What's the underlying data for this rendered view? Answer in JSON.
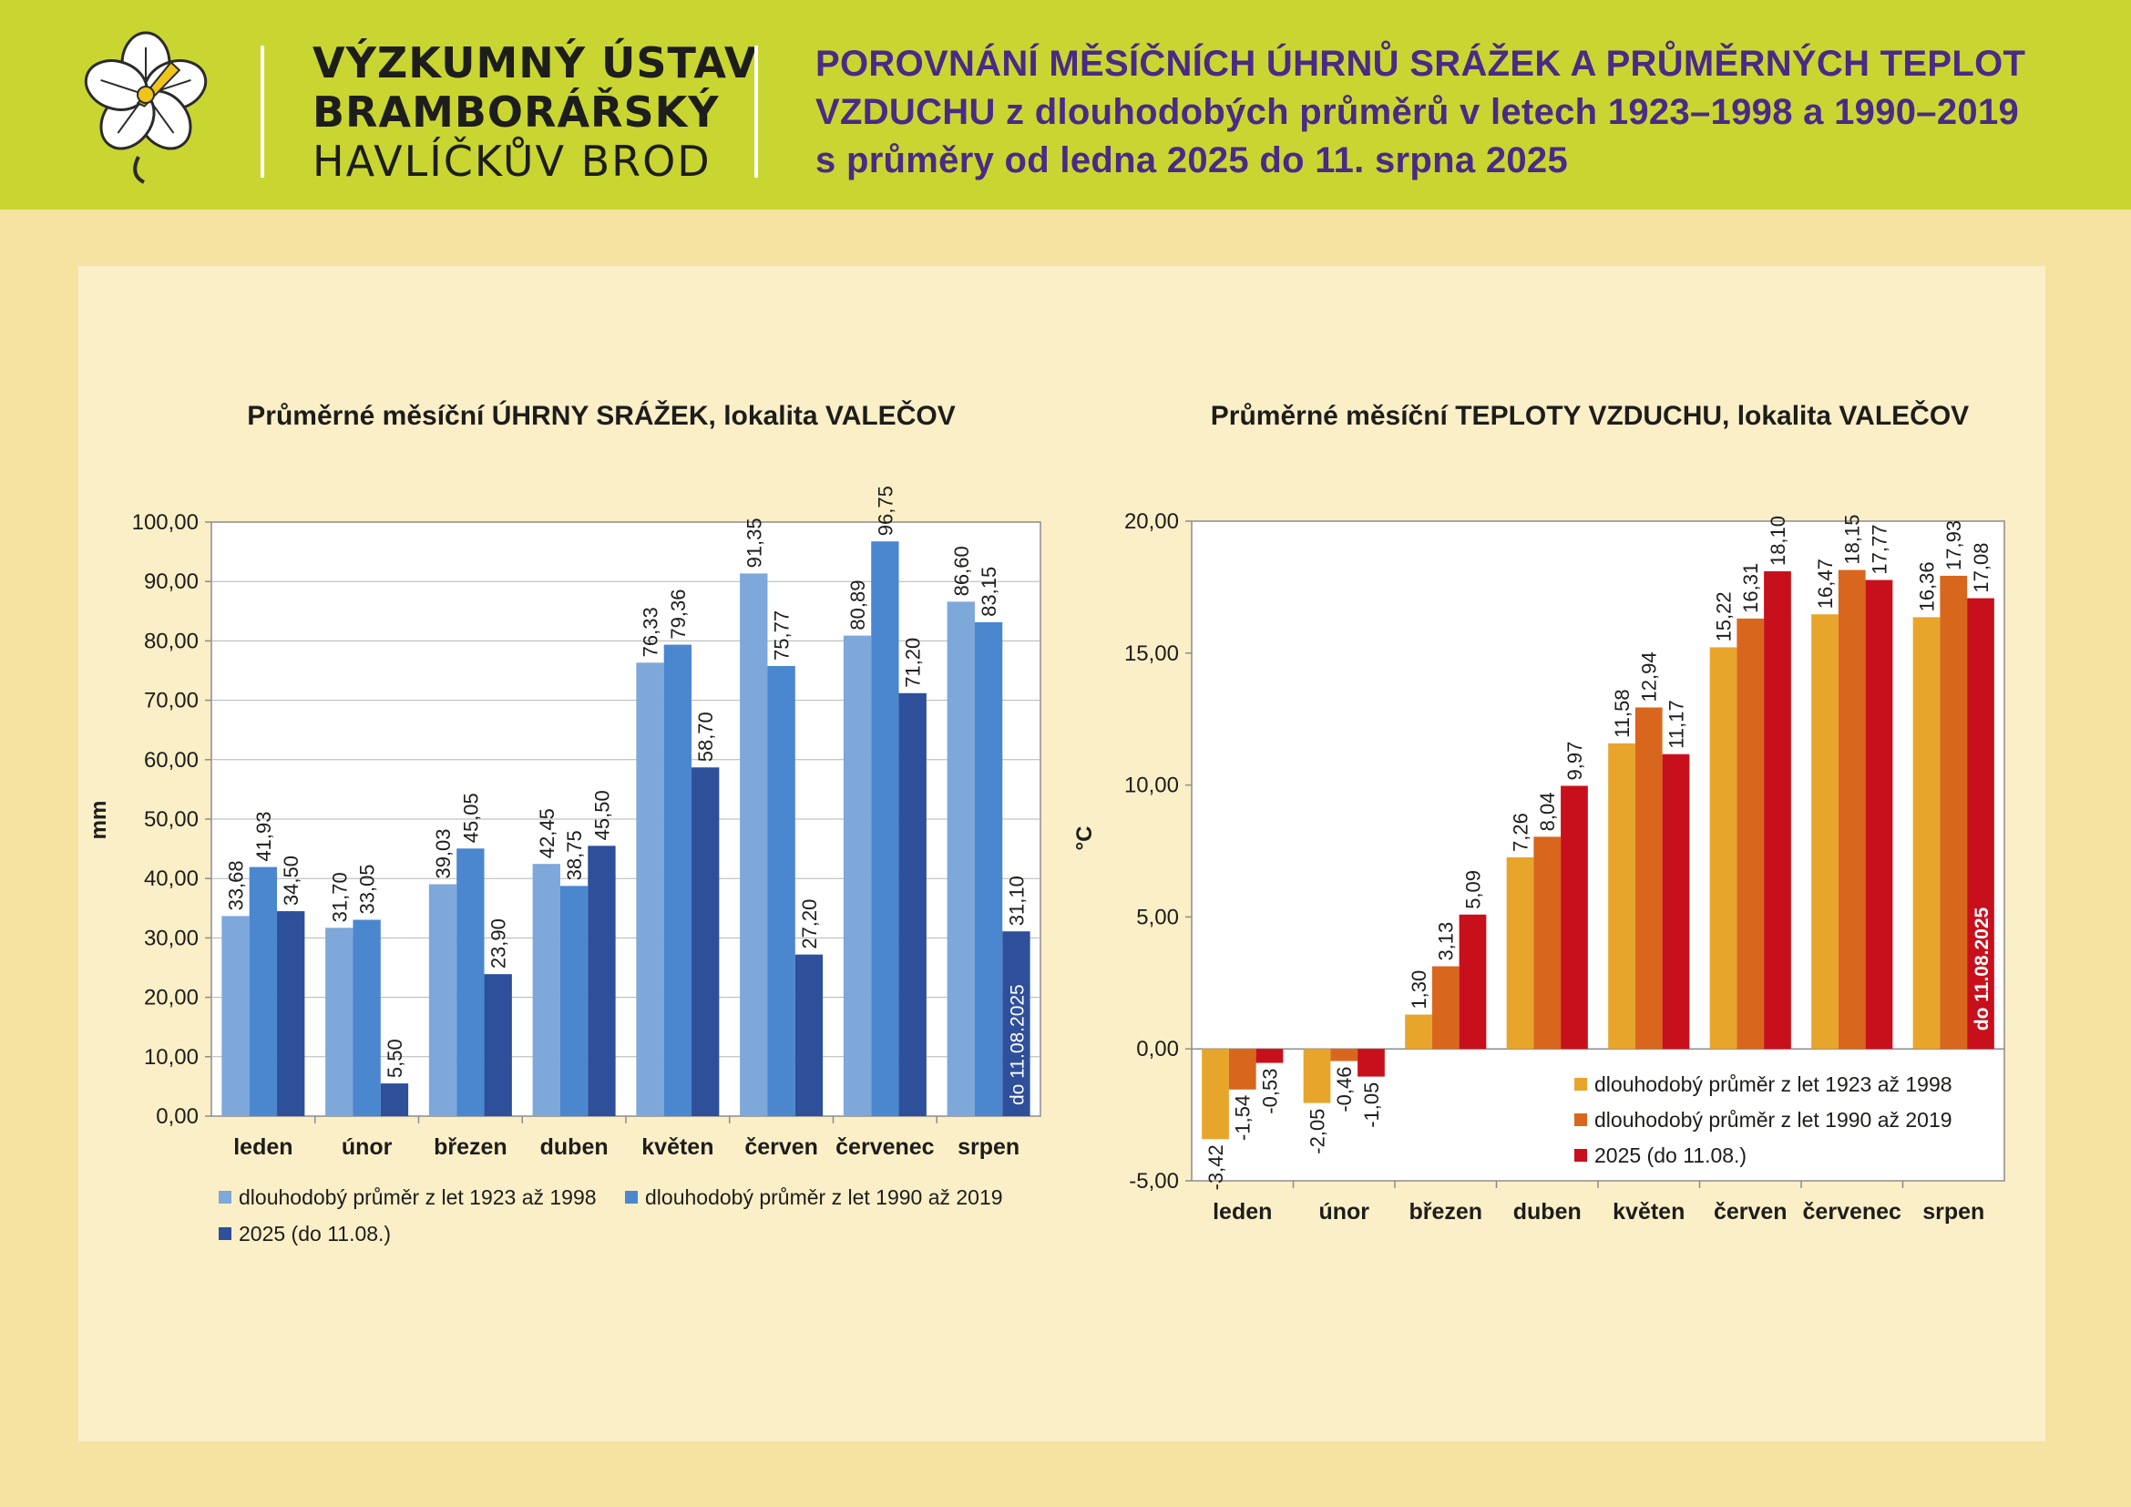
{
  "colors": {
    "header_bg": "#c9d631",
    "page_bg": "#f6e3a1",
    "panel_bg": "#fbefc8",
    "title": "#4a2a87"
  },
  "header": {
    "org_line1": "VÝZKUMNÝ ÚSTAV",
    "org_line2": "BRAMBORÁŘSKÝ",
    "org_line3": "HAVLÍČKŮV BROD",
    "title_line1": "POROVNÁNÍ MĚSÍČNÍCH ÚHRNŮ SRÁŽEK A PRŮMĚRNÝCH TEPLOT",
    "title_line2": "VZDUCHU z dlouhodobých průměrů v letech 1923–1998 a 1990–2019",
    "title_line3": "s průměry od ledna 2025 do 11. srpna 2025",
    "logo_icon": "flower-icon"
  },
  "chart_data": [
    {
      "type": "bar",
      "title": "Průměrné měsíční ÚHRNY SRÁŽEK, lokalita VALEČOV",
      "xlabel": "",
      "ylabel": "mm",
      "ylim": [
        0,
        100
      ],
      "yticks": [
        "0,00",
        "10,00",
        "20,00",
        "30,00",
        "40,00",
        "50,00",
        "60,00",
        "70,00",
        "80,00",
        "90,00",
        "100,00"
      ],
      "grid": true,
      "legend_position": "bottom",
      "categories": [
        "leden",
        "únor",
        "březen",
        "duben",
        "květen",
        "červen",
        "červenec",
        "srpen"
      ],
      "series": [
        {
          "name": "dlouhodobý průměr z let 1923 až 1998",
          "color": "#7ea7da",
          "values": [
            33.68,
            31.7,
            39.03,
            42.45,
            76.33,
            91.35,
            80.89,
            86.6
          ],
          "labels": [
            "33,68",
            "31,70",
            "39,03",
            "42,45",
            "76,33",
            "91,35",
            "80,89",
            "86,60"
          ]
        },
        {
          "name": "dlouhodobý průměr z let 1990 až 2019",
          "color": "#4b87cf",
          "values": [
            41.93,
            33.05,
            45.05,
            38.75,
            79.36,
            75.77,
            96.75,
            83.15
          ],
          "labels": [
            "41,93",
            "33,05",
            "45,05",
            "38,75",
            "79,36",
            "75,77",
            "96,75",
            "83,15"
          ]
        },
        {
          "name": "2025 (do 11.08.)",
          "color": "#2e4f9a",
          "values": [
            34.5,
            5.5,
            23.9,
            45.5,
            58.7,
            27.2,
            71.2,
            31.1
          ],
          "labels": [
            "34,50",
            "5,50",
            "23,90",
            "45,50",
            "58,70",
            "27,20",
            "71,20",
            "31,10"
          ]
        }
      ],
      "annotation": "do 11.08.2025"
    },
    {
      "type": "bar",
      "title": "Průměrné měsíční TEPLOTY VZDUCHU, lokalita VALEČOV",
      "xlabel": "",
      "ylabel": "°C",
      "ylim": [
        -5,
        20
      ],
      "yticks": [
        "-5,00",
        "0,00",
        "5,00",
        "10,00",
        "15,00",
        "20,00"
      ],
      "grid": false,
      "legend_position": "inside-bottom-right",
      "categories": [
        "leden",
        "únor",
        "březen",
        "duben",
        "květen",
        "červen",
        "červenec",
        "srpen"
      ],
      "series": [
        {
          "name": "dlouhodobý průměr z let 1923 až 1998",
          "color": "#e8a52c",
          "values": [
            -3.42,
            -2.05,
            1.3,
            7.26,
            11.58,
            15.22,
            16.47,
            16.36
          ],
          "labels": [
            "-3,42",
            "-2,05",
            "1,30",
            "7,26",
            "11,58",
            "15,22",
            "16,47",
            "16,36"
          ]
        },
        {
          "name": "dlouhodobý průměr z let 1990 až 2019",
          "color": "#d8671d",
          "values": [
            -1.54,
            -0.46,
            3.13,
            8.04,
            12.94,
            16.31,
            18.15,
            17.93
          ],
          "labels": [
            "-1,54",
            "-0,46",
            "3,13",
            "8,04",
            "12,94",
            "16,31",
            "18,15",
            "17,93"
          ]
        },
        {
          "name": "2025 (do 11.08.)",
          "color": "#c8101c",
          "values": [
            -0.53,
            -1.05,
            5.09,
            9.97,
            11.17,
            18.1,
            17.77,
            17.08
          ],
          "labels": [
            "-0,53",
            "-1,05",
            "5,09",
            "9,97",
            "11,17",
            "18,10",
            "17,77",
            "17,08"
          ]
        }
      ],
      "annotation": "do 11.08.2025"
    }
  ]
}
